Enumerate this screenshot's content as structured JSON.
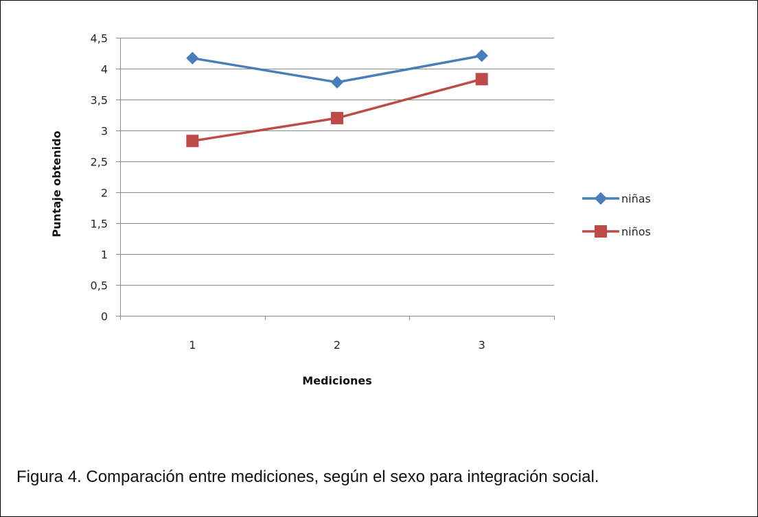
{
  "chart_data": {
    "type": "line",
    "title": "",
    "xlabel": "Mediciones",
    "ylabel": "Puntaje obtenido",
    "categories": [
      "1",
      "2",
      "3"
    ],
    "ylim": [
      0,
      4.5
    ],
    "yticks": [
      "0",
      "0,5",
      "1",
      "1,5",
      "2",
      "2,5",
      "3",
      "3,5",
      "4",
      "4,5"
    ],
    "ytick_values": [
      0,
      0.5,
      1,
      1.5,
      2,
      2.5,
      3,
      3.5,
      4,
      4.5
    ],
    "grid": true,
    "legend_position": "right",
    "series": [
      {
        "name": "niñas",
        "values": [
          4.17,
          3.78,
          4.21
        ],
        "color": "#4a7ebb",
        "marker": "diamond"
      },
      {
        "name": "niños",
        "values": [
          2.83,
          3.2,
          3.83
        ],
        "color": "#be4b48",
        "marker": "square"
      }
    ]
  },
  "caption": {
    "text": "Figura 4.  Comparación entre mediciones, según el sexo para integración social."
  }
}
